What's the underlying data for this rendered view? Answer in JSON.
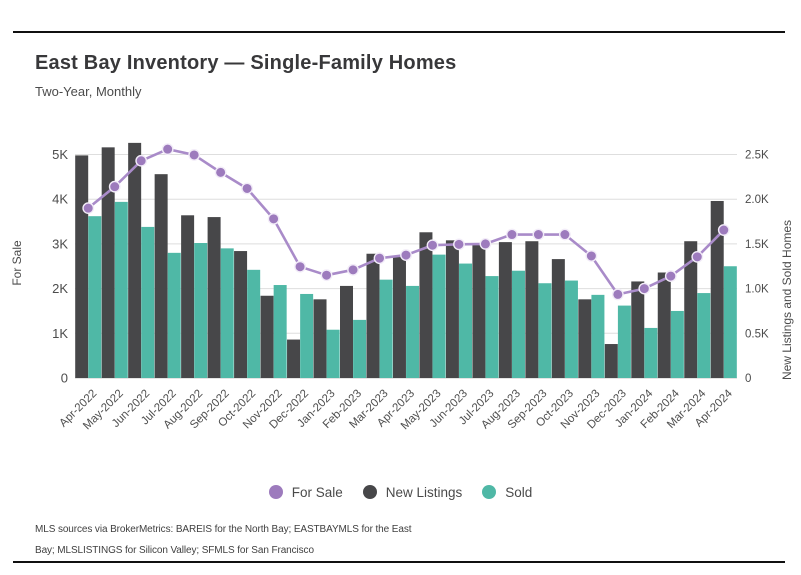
{
  "page": {
    "title": "East Bay Inventory — Single-Family Homes",
    "subtitle": "Two-Year, Monthly",
    "footer_line1": "MLS sources via BrokerMetrics: BAREIS for the North Bay; EASTBAYMLS for the East",
    "footer_line2": "Bay; MLSLISTINGS for Silicon Valley; SFMLS for San Francisco"
  },
  "chart_data": {
    "type": "combo (bar + line)",
    "title": "East Bay Inventory — Single-Family Homes",
    "subtitle": "Two-Year, Monthly",
    "grid": true,
    "legend_position": "bottom",
    "categories": [
      "Apr-2022",
      "May-2022",
      "Jun-2022",
      "Jul-2022",
      "Aug-2022",
      "Sep-2022",
      "Oct-2022",
      "Nov-2022",
      "Dec-2022",
      "Jan-2023",
      "Feb-2023",
      "Mar-2023",
      "Apr-2023",
      "May-2023",
      "Jun-2023",
      "Jul-2023",
      "Aug-2023",
      "Sep-2023",
      "Oct-2023",
      "Nov-2023",
      "Dec-2023",
      "Jan-2024",
      "Feb-2024",
      "Mar-2024",
      "Apr-2024"
    ],
    "series": [
      {
        "name": "For Sale",
        "type": "line",
        "axis": "left",
        "color": "#a98bc9",
        "point_color": "#9d7bbd",
        "values": [
          3800,
          4280,
          4860,
          5120,
          4990,
          4600,
          4240,
          3560,
          2490,
          2300,
          2420,
          2680,
          2750,
          2970,
          2990,
          3000,
          3210,
          3210,
          3210,
          2730,
          1870,
          2000,
          2280,
          2710,
          3310
        ]
      },
      {
        "name": "New Listings",
        "type": "bar",
        "axis": "right",
        "color": "#474749",
        "values": [
          2490,
          2580,
          2630,
          2280,
          1820,
          1800,
          1420,
          920,
          430,
          880,
          1030,
          1390,
          1360,
          1630,
          1540,
          1490,
          1520,
          1530,
          1330,
          880,
          380,
          1080,
          1180,
          1530,
          1980
        ]
      },
      {
        "name": "Sold",
        "type": "bar",
        "axis": "right",
        "color": "#4fb8a6",
        "values": [
          1810,
          1970,
          1690,
          1400,
          1510,
          1450,
          1210,
          1040,
          940,
          540,
          650,
          1100,
          1030,
          1380,
          1280,
          1140,
          1200,
          1060,
          1090,
          930,
          810,
          560,
          750,
          950,
          1250
        ]
      }
    ],
    "left_axis": {
      "label": "For Sale",
      "ticks": [
        "0",
        "1K",
        "2K",
        "3K",
        "4K",
        "5K"
      ],
      "tick_values": [
        0,
        1000,
        2000,
        3000,
        4000,
        5000
      ],
      "range": [
        0,
        5330
      ]
    },
    "right_axis": {
      "label": "New Listings and Sold Homes",
      "ticks": [
        "0",
        "0.5K",
        "1.0K",
        "1.5K",
        "2.0K",
        "2.5K"
      ],
      "tick_values": [
        0,
        500,
        1000,
        1500,
        2000,
        2500
      ],
      "range": [
        0,
        2665
      ]
    }
  }
}
